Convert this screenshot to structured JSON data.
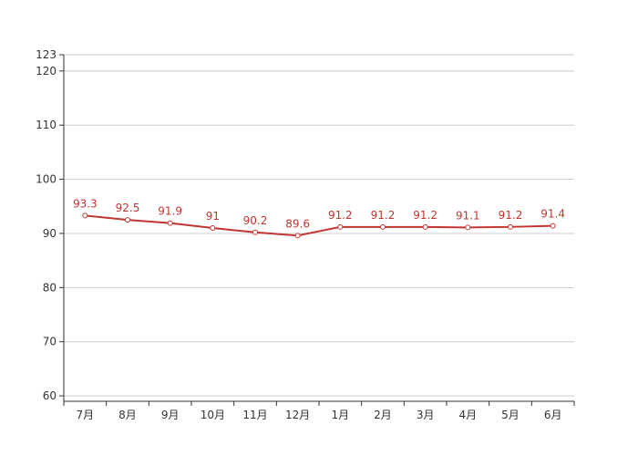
{
  "chart_data": {
    "type": "line",
    "categories": [
      "7月",
      "8月",
      "9月",
      "10月",
      "11月",
      "12月",
      "1月",
      "2月",
      "3月",
      "4月",
      "5月",
      "6月"
    ],
    "series": [
      {
        "values": [
          93.3,
          92.5,
          91.9,
          91,
          90.2,
          89.6,
          91.2,
          91.2,
          91.2,
          91.1,
          91.2,
          91.4
        ]
      }
    ],
    "data_labels": [
      "93.3",
      "92.5",
      "91.9",
      "91",
      "90.2",
      "89.6",
      "91.2",
      "91.2",
      "91.2",
      "91.1",
      "91.2",
      "91.4"
    ],
    "y_ticks": [
      60,
      70,
      80,
      90,
      100,
      110,
      120,
      123
    ],
    "ylim": [
      59,
      123
    ],
    "grid": true,
    "legend": "none",
    "title": "",
    "xlabel": "",
    "ylabel": ""
  },
  "colors": {
    "line": "#c23531",
    "marker_fill": "#ffffff",
    "label": "#c23531",
    "grid": "#cccccc",
    "axis": "#333333",
    "tick_text": "#333333"
  }
}
